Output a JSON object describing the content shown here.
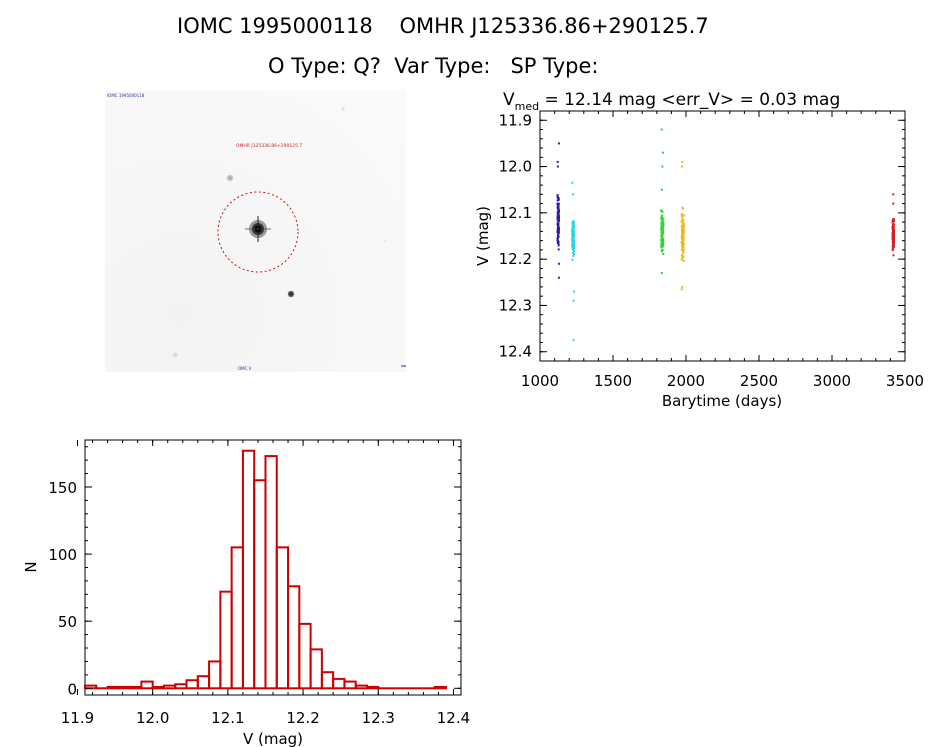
{
  "header": {
    "title_line1": "IOMC 1995000118    OMHR J125336.86+290125.7",
    "title_line2": "O Type: Q?  Var Type:   SP Type:"
  },
  "image_panel": {
    "corner_label": "IOMC 1995000118",
    "target_label": "OMHR J125336.86+290125.7",
    "bottom_label": "OMC V"
  },
  "chart_data": [
    {
      "type": "scatter",
      "title_parts": {
        "v": "V",
        "sub": "med",
        "rest": " = 12.14 mag <err_V> = 0.03 mag"
      },
      "xlabel": "Barytime (days)",
      "ylabel": "V (mag)",
      "xlim": [
        1000,
        3500
      ],
      "ylim": [
        12.42,
        11.88
      ],
      "y_inverted": true,
      "xticks": [
        1000,
        1500,
        2000,
        2500,
        3000,
        3500
      ],
      "yticks": [
        11.9,
        12.0,
        12.1,
        12.2,
        12.3,
        12.4
      ],
      "series": [
        {
          "x_range": [
            1120,
            1130
          ],
          "v_range": [
            12.04,
            12.2
          ],
          "outliers": [
            11.95,
            11.99,
            12.0,
            12.21,
            12.24
          ],
          "color": "#2a1f9e"
        },
        {
          "x_range": [
            1220,
            1235
          ],
          "v_range": [
            12.09,
            12.22
          ],
          "outliers": [
            12.035,
            12.06,
            12.27,
            12.29,
            12.375
          ],
          "color": "#2fd3e8"
        },
        {
          "x_range": [
            1830,
            1845
          ],
          "v_range": [
            12.07,
            12.21
          ],
          "outliers": [
            11.92,
            11.97,
            12.0,
            12.05,
            12.23
          ],
          "color": "#33d43a"
        },
        {
          "x_range": [
            1970,
            1985
          ],
          "v_range": [
            12.075,
            12.225
          ],
          "outliers": [
            11.99,
            12.0,
            12.26,
            12.265
          ],
          "color": "#ecbb1b"
        },
        {
          "x_range": [
            3415,
            3425
          ],
          "v_range": [
            12.1,
            12.2
          ],
          "outliers": [
            12.06,
            12.08
          ],
          "color": "#d22020"
        }
      ]
    },
    {
      "type": "bar",
      "subtype": "histogram",
      "xlabel": "V (mag)",
      "ylabel": "N",
      "xlim": [
        11.91,
        12.41
      ],
      "ylim": [
        -5,
        185
      ],
      "xticks": [
        11.9,
        12.0,
        12.1,
        12.2,
        12.3,
        12.4
      ],
      "yticks": [
        0,
        50,
        100,
        150
      ],
      "bar_color": "#cc0000",
      "bins": [
        {
          "x0": 11.91,
          "x1": 11.925,
          "n": 2
        },
        {
          "x0": 11.925,
          "x1": 11.94,
          "n": 0
        },
        {
          "x0": 11.94,
          "x1": 11.955,
          "n": 1
        },
        {
          "x0": 11.955,
          "x1": 11.97,
          "n": 1
        },
        {
          "x0": 11.97,
          "x1": 11.985,
          "n": 1
        },
        {
          "x0": 11.985,
          "x1": 12.0,
          "n": 5
        },
        {
          "x0": 12.0,
          "x1": 12.015,
          "n": 1
        },
        {
          "x0": 12.015,
          "x1": 12.03,
          "n": 2
        },
        {
          "x0": 12.03,
          "x1": 12.045,
          "n": 3
        },
        {
          "x0": 12.045,
          "x1": 12.06,
          "n": 6
        },
        {
          "x0": 12.06,
          "x1": 12.075,
          "n": 9
        },
        {
          "x0": 12.075,
          "x1": 12.09,
          "n": 20
        },
        {
          "x0": 12.09,
          "x1": 12.105,
          "n": 72
        },
        {
          "x0": 12.105,
          "x1": 12.12,
          "n": 105
        },
        {
          "x0": 12.12,
          "x1": 12.135,
          "n": 177
        },
        {
          "x0": 12.135,
          "x1": 12.15,
          "n": 155
        },
        {
          "x0": 12.15,
          "x1": 12.165,
          "n": 173
        },
        {
          "x0": 12.165,
          "x1": 12.18,
          "n": 105
        },
        {
          "x0": 12.18,
          "x1": 12.195,
          "n": 76
        },
        {
          "x0": 12.195,
          "x1": 12.21,
          "n": 48
        },
        {
          "x0": 12.21,
          "x1": 12.225,
          "n": 29
        },
        {
          "x0": 12.225,
          "x1": 12.24,
          "n": 12
        },
        {
          "x0": 12.24,
          "x1": 12.255,
          "n": 7
        },
        {
          "x0": 12.255,
          "x1": 12.27,
          "n": 5
        },
        {
          "x0": 12.27,
          "x1": 12.285,
          "n": 2
        },
        {
          "x0": 12.285,
          "x1": 12.3,
          "n": 1
        },
        {
          "x0": 12.3,
          "x1": 12.375,
          "n": 0
        },
        {
          "x0": 12.375,
          "x1": 12.39,
          "n": 1
        }
      ]
    }
  ]
}
